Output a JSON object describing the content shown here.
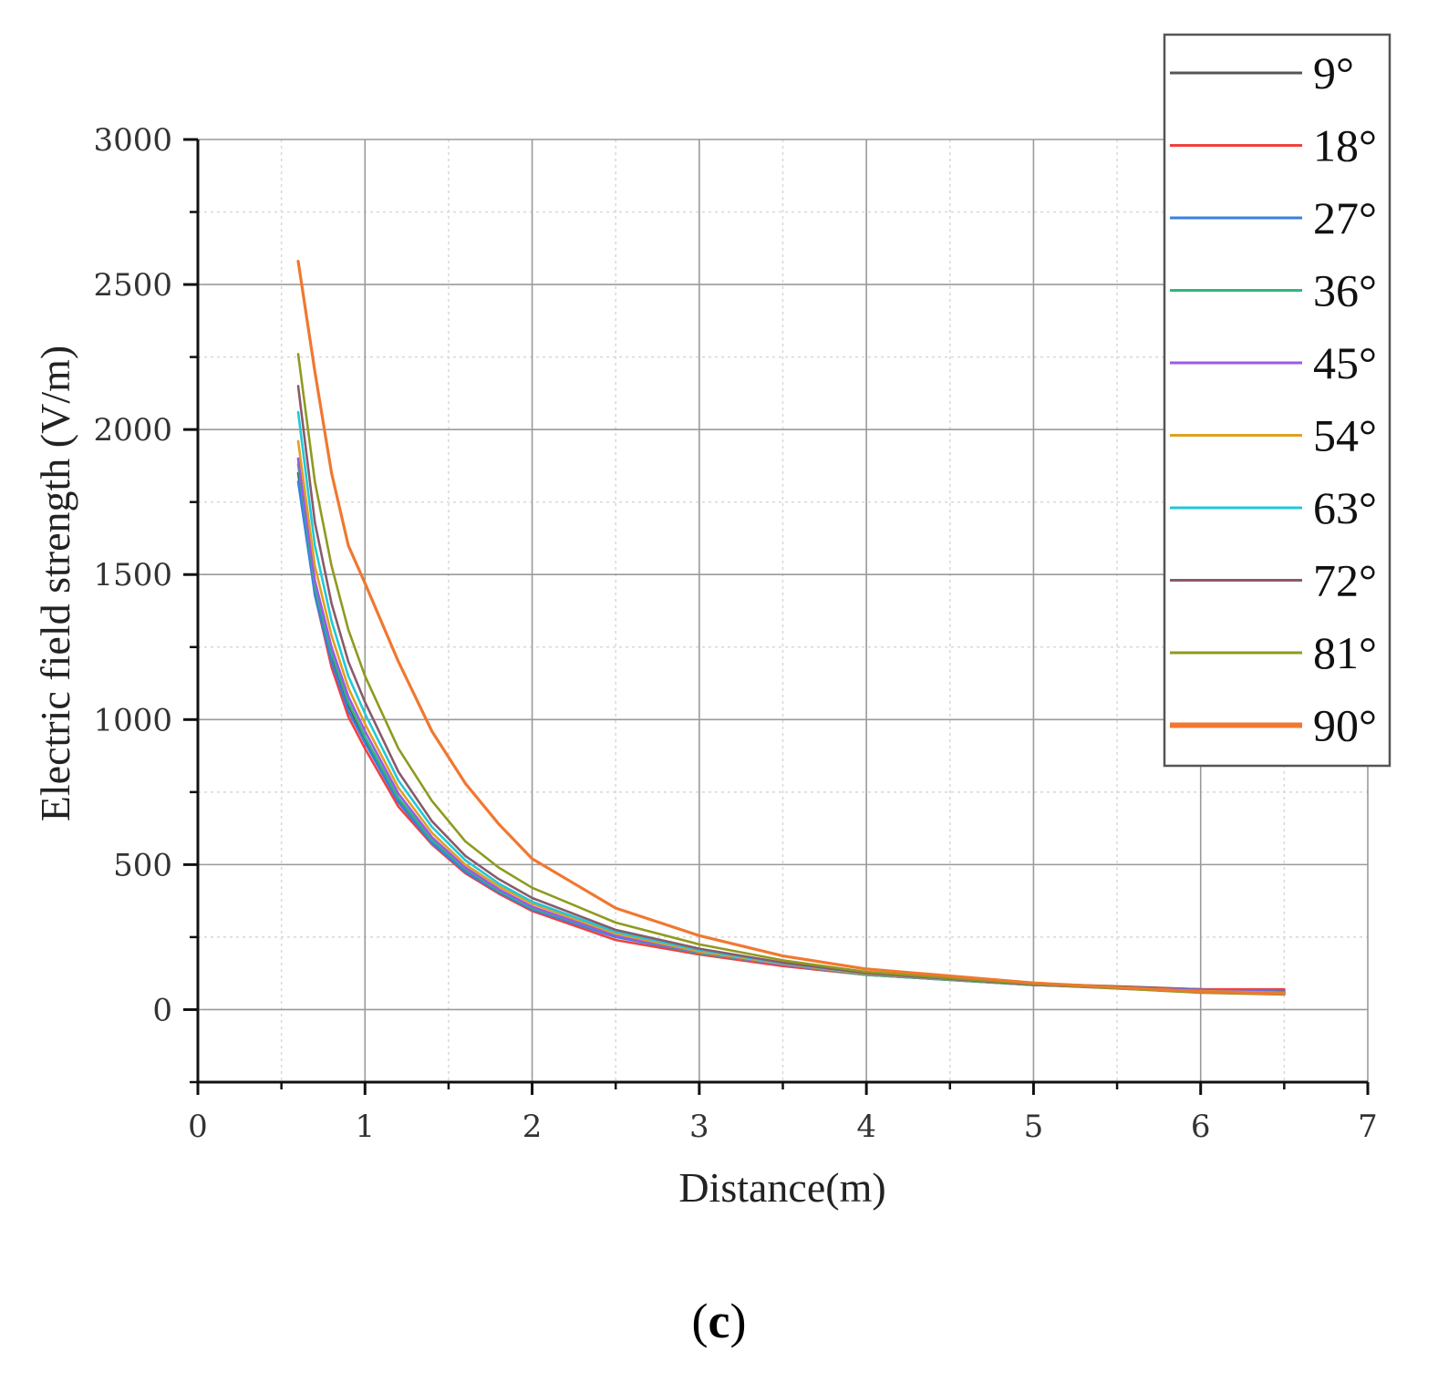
{
  "chart_data": {
    "type": "line",
    "title": "",
    "xlabel": "Distance(m)",
    "ylabel": "Electric field strength (V/m)",
    "xlim": [
      0,
      7
    ],
    "ylim": [
      -250,
      3000
    ],
    "xticks": [
      "0",
      "1",
      "2",
      "3",
      "4",
      "5",
      "6",
      "7"
    ],
    "yticks": [
      "0",
      "500",
      "1000",
      "1500",
      "2000",
      "2500",
      "3000"
    ],
    "grid": true,
    "legend_position": "top-right",
    "x": [
      0.6,
      0.7,
      0.8,
      0.9,
      1.0,
      1.2,
      1.4,
      1.6,
      1.8,
      2.0,
      2.5,
      3.0,
      3.5,
      4.0,
      5.0,
      6.0,
      6.5
    ],
    "series": [
      {
        "name": "9°",
        "color": "#555555",
        "values": [
          1850,
          1450,
          1220,
          1050,
          930,
          720,
          580,
          480,
          410,
          350,
          260,
          200,
          160,
          125,
          90,
          70,
          65
        ]
      },
      {
        "name": "18°",
        "color": "#f04040",
        "values": [
          1900,
          1430,
          1180,
          1010,
          900,
          700,
          570,
          470,
          400,
          340,
          240,
          190,
          150,
          120,
          85,
          70,
          70
        ]
      },
      {
        "name": "27°",
        "color": "#3a7fe0",
        "values": [
          1820,
          1430,
          1200,
          1030,
          920,
          715,
          575,
          475,
          405,
          345,
          250,
          195,
          155,
          120,
          85,
          68,
          62
        ]
      },
      {
        "name": "36°",
        "color": "#2eb87a",
        "values": [
          1880,
          1460,
          1230,
          1060,
          940,
          730,
          585,
          485,
          410,
          350,
          255,
          195,
          155,
          120,
          85,
          65,
          60
        ]
      },
      {
        "name": "45°",
        "color": "#9b59e8",
        "values": [
          1900,
          1480,
          1250,
          1080,
          960,
          745,
          595,
          490,
          415,
          355,
          255,
          198,
          155,
          122,
          86,
          66,
          60
        ]
      },
      {
        "name": "54°",
        "color": "#e0a020",
        "values": [
          1960,
          1530,
          1290,
          1110,
          985,
          765,
          610,
          500,
          425,
          365,
          262,
          200,
          158,
          123,
          86,
          64,
          58
        ]
      },
      {
        "name": "63°",
        "color": "#20c8d8",
        "values": [
          2060,
          1600,
          1340,
          1150,
          1020,
          790,
          630,
          515,
          435,
          372,
          268,
          205,
          160,
          125,
          86,
          62,
          56
        ]
      },
      {
        "name": "72°",
        "color": "#8a5a6a",
        "values": [
          2150,
          1680,
          1400,
          1200,
          1060,
          820,
          650,
          530,
          450,
          385,
          275,
          210,
          162,
          126,
          86,
          60,
          55
        ]
      },
      {
        "name": "81°",
        "color": "#8f9a20",
        "values": [
          2260,
          1820,
          1530,
          1310,
          1150,
          900,
          720,
          580,
          490,
          420,
          300,
          225,
          170,
          130,
          88,
          58,
          52
        ]
      },
      {
        "name": "90°",
        "color": "#f07830",
        "values": [
          2580,
          2200,
          1850,
          1600,
          1470,
          1200,
          960,
          780,
          640,
          520,
          350,
          255,
          185,
          140,
          92,
          62,
          55
        ]
      }
    ]
  },
  "panel_label": {
    "open": "(",
    "letter": "c",
    "close": ")"
  }
}
